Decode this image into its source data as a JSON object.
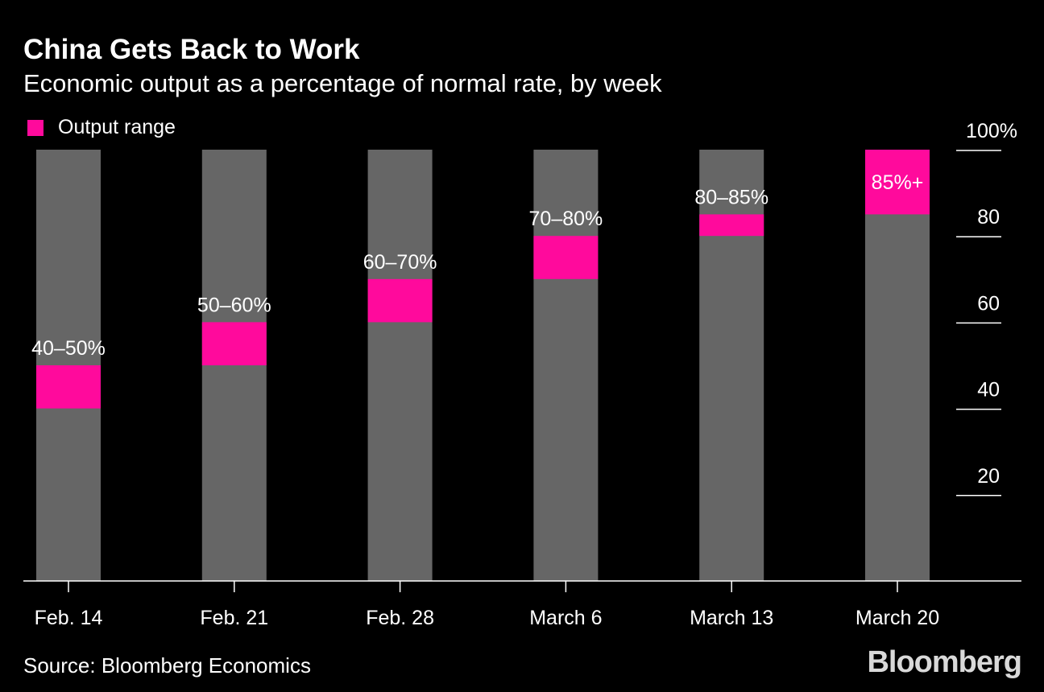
{
  "chart_data": {
    "type": "bar",
    "title": "China Gets Back to Work",
    "subtitle": "Economic output as a percentage of normal rate, by week",
    "legend": [
      {
        "name": "Output range",
        "color": "#ff0a9c"
      }
    ],
    "legend_placement": "top-left",
    "categories": [
      "Feb. 14",
      "Feb. 21",
      "Feb. 28",
      "March 6",
      "March 13",
      "March 20"
    ],
    "series": [
      {
        "name": "Output range",
        "ranges": [
          [
            40,
            50
          ],
          [
            50,
            60
          ],
          [
            60,
            70
          ],
          [
            70,
            80
          ],
          [
            80,
            85
          ],
          [
            85,
            100
          ]
        ]
      }
    ],
    "background_bar_value": 100,
    "data_labels": [
      "40–50%",
      "50–60%",
      "60–70%",
      "70–80%",
      "80–85%",
      "85%+"
    ],
    "yticks": [
      20,
      40,
      60,
      80,
      100
    ],
    "ytick_labels": [
      "20",
      "40",
      "60",
      "80",
      "100%"
    ],
    "ylim": [
      0,
      100
    ],
    "y_axis_side": "right",
    "grid": false,
    "colors": {
      "background": "#000000",
      "bar": "#666666",
      "range": "#ff0a9c",
      "text": "#ffffff"
    }
  },
  "source": "Source: Bloomberg Economics",
  "logo": "Bloomberg"
}
